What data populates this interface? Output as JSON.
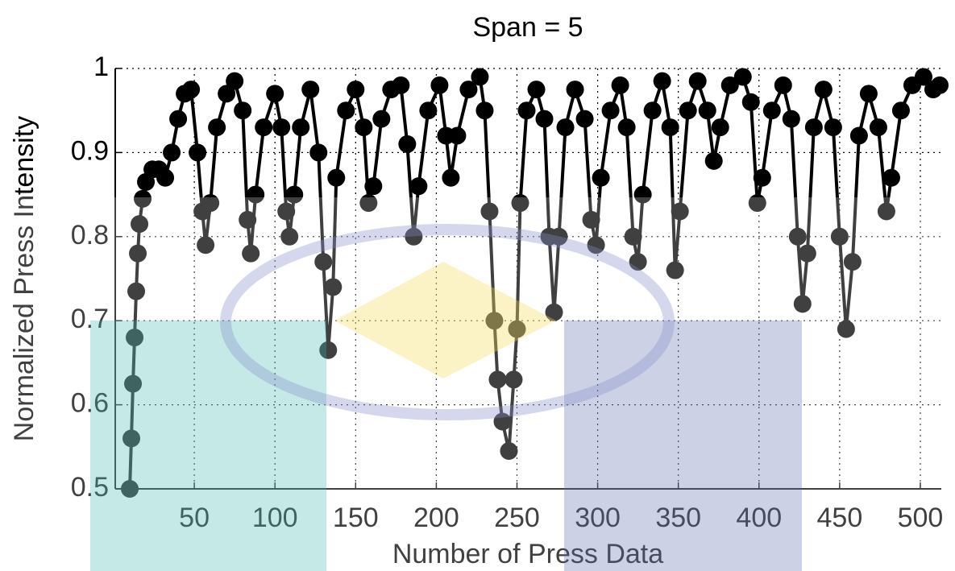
{
  "chart_data": {
    "type": "line",
    "title": "Span = 5",
    "x_label": "Number of Press Data",
    "y_label": "Normalized Press Intensity",
    "color": "#000000",
    "markers": true,
    "grid": true,
    "xlim": [
      1,
      513
    ],
    "ylim": [
      0.5,
      1
    ],
    "xticks": [
      50,
      100,
      150,
      200,
      250,
      300,
      350,
      400,
      450,
      500
    ],
    "yticks": [
      0.5,
      0.6,
      0.7,
      0.8,
      0.9,
      1
    ],
    "x": [
      10,
      11,
      12,
      13,
      14,
      15,
      16,
      18,
      20,
      24,
      28,
      32,
      36,
      40,
      44,
      48,
      52,
      55,
      57,
      60,
      64,
      70,
      75,
      80,
      83,
      85,
      88,
      93,
      100,
      104,
      107,
      109,
      112,
      116,
      122,
      127,
      130,
      133,
      136,
      138,
      144,
      150,
      155,
      158,
      161,
      166,
      172,
      178,
      182,
      186,
      189,
      195,
      202,
      206,
      209,
      213,
      220,
      227,
      230,
      233,
      236,
      238,
      241,
      245,
      248,
      250,
      252,
      256,
      262,
      267,
      270,
      273,
      276,
      280,
      286,
      292,
      296,
      299,
      302,
      308,
      314,
      318,
      322,
      325,
      328,
      334,
      340,
      345,
      348,
      351,
      356,
      362,
      368,
      372,
      376,
      382,
      390,
      395,
      399,
      402,
      408,
      415,
      420,
      424,
      427,
      430,
      434,
      440,
      446,
      450,
      454,
      458,
      462,
      468,
      474,
      479,
      482,
      488,
      495,
      502,
      508,
      512
    ],
    "values": [
      0.5,
      0.56,
      0.625,
      0.68,
      0.735,
      0.78,
      0.815,
      0.845,
      0.865,
      0.88,
      0.88,
      0.87,
      0.9,
      0.94,
      0.97,
      0.975,
      0.9,
      0.83,
      0.79,
      0.84,
      0.93,
      0.97,
      0.985,
      0.95,
      0.82,
      0.78,
      0.85,
      0.93,
      0.97,
      0.93,
      0.83,
      0.8,
      0.85,
      0.93,
      0.975,
      0.9,
      0.77,
      0.665,
      0.74,
      0.87,
      0.95,
      0.975,
      0.93,
      0.84,
      0.86,
      0.94,
      0.975,
      0.98,
      0.91,
      0.8,
      0.86,
      0.95,
      0.98,
      0.92,
      0.87,
      0.92,
      0.975,
      0.99,
      0.95,
      0.83,
      0.7,
      0.63,
      0.58,
      0.545,
      0.63,
      0.69,
      0.84,
      0.95,
      0.975,
      0.94,
      0.8,
      0.71,
      0.8,
      0.93,
      0.975,
      0.94,
      0.82,
      0.79,
      0.87,
      0.95,
      0.98,
      0.93,
      0.8,
      0.77,
      0.85,
      0.95,
      0.985,
      0.93,
      0.76,
      0.83,
      0.95,
      0.985,
      0.95,
      0.89,
      0.93,
      0.98,
      0.99,
      0.96,
      0.84,
      0.87,
      0.95,
      0.98,
      0.94,
      0.8,
      0.72,
      0.78,
      0.93,
      0.975,
      0.93,
      0.8,
      0.69,
      0.77,
      0.92,
      0.97,
      0.93,
      0.83,
      0.87,
      0.95,
      0.98,
      0.99,
      0.975,
      0.98
    ]
  }
}
